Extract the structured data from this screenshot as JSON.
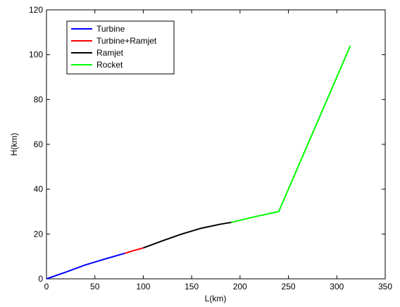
{
  "chart_data": {
    "type": "line",
    "title": "",
    "xlabel": "L(km)",
    "ylabel": "H(km)",
    "xlim": [
      0,
      350
    ],
    "ylim": [
      0,
      120
    ],
    "xticks": [
      0,
      50,
      100,
      150,
      200,
      250,
      300,
      350
    ],
    "yticks": [
      0,
      20,
      40,
      60,
      80,
      100,
      120
    ],
    "grid": false,
    "legend_position": "top-left",
    "series": [
      {
        "name": "Turbine",
        "color": "#0000ff",
        "x": [
          0,
          20,
          40,
          60,
          81
        ],
        "y": [
          0,
          3,
          6.2,
          8.8,
          11.4
        ]
      },
      {
        "name": "Turbine+Ramjet",
        "color": "#ff0000",
        "x": [
          81,
          90,
          100
        ],
        "y": [
          11.4,
          12.6,
          13.8
        ]
      },
      {
        "name": "Ramjet",
        "color": "#000000",
        "x": [
          100,
          120,
          140,
          160,
          180,
          191
        ],
        "y": [
          13.8,
          17,
          20,
          22.6,
          24.4,
          25.2
        ]
      },
      {
        "name": "Rocket",
        "color": "#00ff00",
        "x": [
          191,
          215,
          240,
          314
        ],
        "y": [
          25.2,
          27.7,
          30,
          104
        ]
      }
    ]
  }
}
